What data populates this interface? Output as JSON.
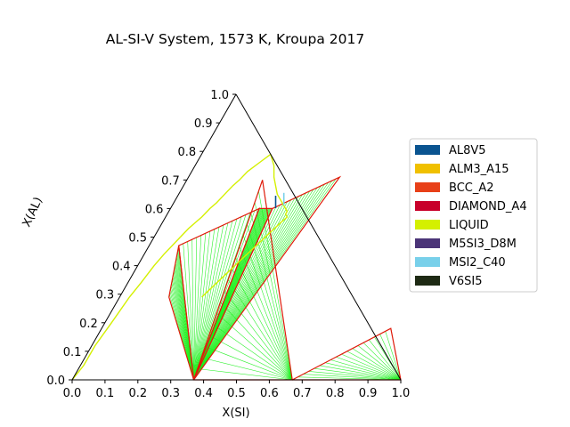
{
  "chart_data": {
    "type": "ternary_phase_diagram",
    "title": "AL-SI-V System, 1573 K, Kroupa 2017",
    "xlabel": "X(SI)",
    "ylabel": "X(AL)",
    "xlim": [
      0.0,
      1.0
    ],
    "ylim": [
      0.0,
      1.0
    ],
    "x_ticks": [
      "0.0",
      "0.1",
      "0.2",
      "0.3",
      "0.4",
      "0.5",
      "0.6",
      "0.7",
      "0.8",
      "0.9",
      "1.0"
    ],
    "y_ticks": [
      "0.0",
      "0.1",
      "0.2",
      "0.3",
      "0.4",
      "0.5",
      "0.6",
      "0.7",
      "0.8",
      "0.9",
      "1.0"
    ],
    "legend_position": "right",
    "legend": [
      {
        "name": "AL8V5",
        "color": "#0a5490"
      },
      {
        "name": "ALM3_A15",
        "color": "#f0c000"
      },
      {
        "name": "BCC_A2",
        "color": "#e84018"
      },
      {
        "name": "DIAMOND_A4",
        "color": "#c8002a"
      },
      {
        "name": "LIQUID",
        "color": "#d4f000"
      },
      {
        "name": "M5SI3_D8M",
        "color": "#4b3478"
      },
      {
        "name": "MSI2_C40",
        "color": "#78d0ea"
      },
      {
        "name": "V6SI5",
        "color": "#1e2a14"
      }
    ],
    "liquidus_curves": [
      [
        [
          0.21,
          0.79
        ],
        [
          0.24,
          0.75
        ],
        [
          0.26,
          0.71
        ],
        [
          0.3,
          0.65
        ],
        [
          0.34,
          0.61
        ],
        [
          0.36,
          0.59
        ],
        [
          0.36,
          0.58
        ],
        [
          0.37,
          0.57
        ],
        [
          0.36,
          0.55
        ],
        [
          0.33,
          0.48
        ],
        [
          0.3,
          0.41
        ],
        [
          0.25,
          0.29
        ]
      ],
      [
        [
          0.21,
          0.79
        ],
        [
          0.19,
          0.76
        ],
        [
          0.17,
          0.73
        ],
        [
          0.16,
          0.7
        ],
        [
          0.15,
          0.68
        ],
        [
          0.14,
          0.65
        ],
        [
          0.13,
          0.62
        ],
        [
          0.12,
          0.6
        ],
        [
          0.11,
          0.57
        ],
        [
          0.1,
          0.55
        ],
        [
          0.09,
          0.53
        ],
        [
          0.08,
          0.5
        ]
      ],
      [
        [
          0.08,
          0.5
        ],
        [
          0.06,
          0.44
        ],
        [
          0.05,
          0.4
        ],
        [
          0.04,
          0.34
        ],
        [
          0.03,
          0.29
        ],
        [
          0.02,
          0.2
        ],
        [
          0.01,
          0.12
        ],
        [
          0.01,
          0.05
        ],
        [
          0.0,
          0.0
        ]
      ]
    ],
    "tie_triangles": [
      [
        [
          0.15,
          0.29
        ],
        [
          0.37,
          0.0
        ],
        [
          0.09,
          0.47
        ]
      ],
      [
        [
          0.09,
          0.47
        ],
        [
          0.37,
          0.0
        ],
        [
          0.27,
          0.6
        ]
      ],
      [
        [
          0.27,
          0.6
        ],
        [
          0.37,
          0.0
        ],
        [
          0.31,
          0.6
        ]
      ],
      [
        [
          0.31,
          0.6
        ],
        [
          0.37,
          0.0
        ],
        [
          0.46,
          0.71
        ]
      ],
      [
        [
          0.37,
          0.0
        ],
        [
          0.67,
          0.0
        ],
        [
          0.23,
          0.7
        ]
      ],
      [
        [
          0.67,
          0.0
        ],
        [
          1.0,
          0.0
        ],
        [
          0.88,
          0.18
        ]
      ]
    ],
    "single_phase_points": [
      {
        "phase": "AL8V5",
        "x": 0.31,
        "y": 0.62
      },
      {
        "phase": "MSI2_C40",
        "x": 0.33,
        "y": 0.63
      }
    ]
  }
}
